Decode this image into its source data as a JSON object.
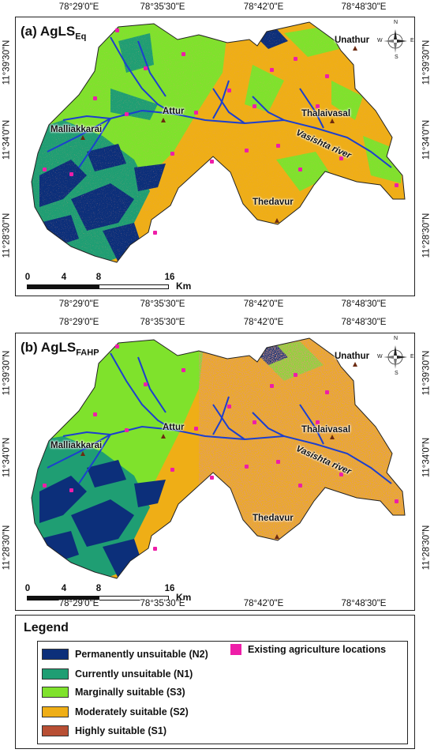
{
  "top_coords": [
    "78°29'0\"E",
    "78°35'30\"E",
    "78°42'0\"E",
    "78°48'30\"E"
  ],
  "side_coords": [
    "11°39'30\"N",
    "11°34'0\"N",
    "11°28'30\"N"
  ],
  "panels": [
    {
      "title": "(a) AgLS",
      "subscript": "Eq"
    },
    {
      "title": "(b) AgLS",
      "subscript": "FAHP"
    }
  ],
  "towns": {
    "unathur": "Unathur",
    "attur": "Attur",
    "thalaivasal": "Thalaivasal",
    "malliakkarai": "Malliakkarai",
    "thedavur": "Thedavur"
  },
  "river": "Vasishta river",
  "scale": {
    "ticks": [
      "0",
      "4",
      "8",
      "16"
    ],
    "unit": "Km"
  },
  "compass": {
    "n": "N",
    "s": "S",
    "e": "E",
    "w": "W"
  },
  "legend": {
    "title": "Legend",
    "classes": [
      {
        "label": "Permanently unsuitable (N2)",
        "color": "#0c2f7a"
      },
      {
        "label": "Currently unsuitable (N1)",
        "color": "#1f9e73"
      },
      {
        "label": "Marginally suitable (S3)",
        "color": "#7fe22c"
      },
      {
        "label": "Moderately suitable (S2)",
        "color": "#efae16"
      },
      {
        "label": "Highly suitable (S1)",
        "color": "#b84f34"
      }
    ],
    "points": {
      "label": "Existing agriculture locations",
      "color": "#ee1ea8"
    }
  },
  "colors": {
    "river": "#1c3fcf",
    "marker": "#ee1ea8"
  }
}
